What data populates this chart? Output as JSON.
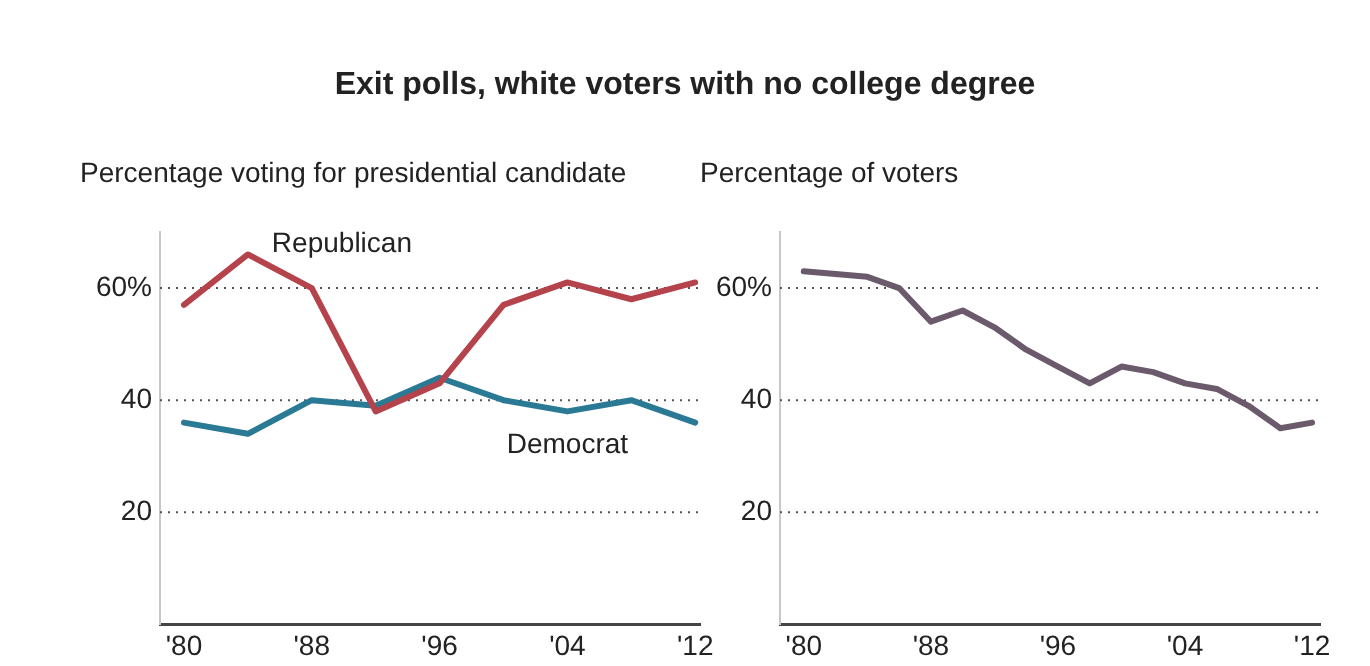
{
  "chart_data": [
    {
      "type": "line",
      "title": "Exit polls, white voters with no college degree",
      "ylabel": "Percentage voting for presidential candidate",
      "x": [
        1980,
        1984,
        1988,
        1992,
        1996,
        2000,
        2004,
        2008,
        2012
      ],
      "series": [
        {
          "name": "Republican",
          "color": "#b5434b",
          "values": [
            57,
            66,
            60,
            38,
            43,
            57,
            61,
            58,
            61
          ]
        },
        {
          "name": "Democrat",
          "color": "#2a7a96",
          "values": [
            36,
            34,
            40,
            39,
            44,
            40,
            38,
            40,
            36
          ]
        }
      ],
      "xlim": [
        1978.5,
        2012.3
      ],
      "xticks": [
        {
          "value": 1980,
          "label": "'80"
        },
        {
          "value": 1988,
          "label": "'88"
        },
        {
          "value": 1996,
          "label": "'96"
        },
        {
          "value": 2004,
          "label": "'04"
        },
        {
          "value": 2012,
          "label": "'12"
        }
      ],
      "ylim": [
        0,
        70
      ],
      "yticks": [
        {
          "value": 20,
          "label": "20"
        },
        {
          "value": 40,
          "label": "40"
        },
        {
          "value": 60,
          "label": "60%"
        }
      ],
      "grid": "y",
      "legend": false,
      "marker": "none",
      "line_style": "solid"
    },
    {
      "type": "line",
      "ylabel": "Percentage of voters",
      "x": [
        1980,
        1984,
        1986,
        1988,
        1990,
        1992,
        1994,
        1996,
        1998,
        2000,
        2002,
        2004,
        2006,
        2008,
        2010,
        2012
      ],
      "series": [
        {
          "color": "#6b5a6b",
          "values": [
            63,
            62,
            60,
            54,
            56,
            53,
            49,
            46,
            43,
            46,
            45,
            43,
            42,
            39,
            35,
            36
          ]
        }
      ],
      "xlim": [
        1978.5,
        2012.5
      ],
      "xticks": [
        {
          "value": 1980,
          "label": "'80"
        },
        {
          "value": 1988,
          "label": "'88"
        },
        {
          "value": 1996,
          "label": "'96"
        },
        {
          "value": 2004,
          "label": "'04"
        },
        {
          "value": 2012,
          "label": "'12"
        }
      ],
      "ylim": [
        0,
        70
      ],
      "yticks": [
        {
          "value": 20,
          "label": "20"
        },
        {
          "value": 40,
          "label": "40"
        },
        {
          "value": 60,
          "label": "60%"
        }
      ],
      "grid": "y",
      "legend": false,
      "marker": "none",
      "line_style": "solid"
    }
  ]
}
